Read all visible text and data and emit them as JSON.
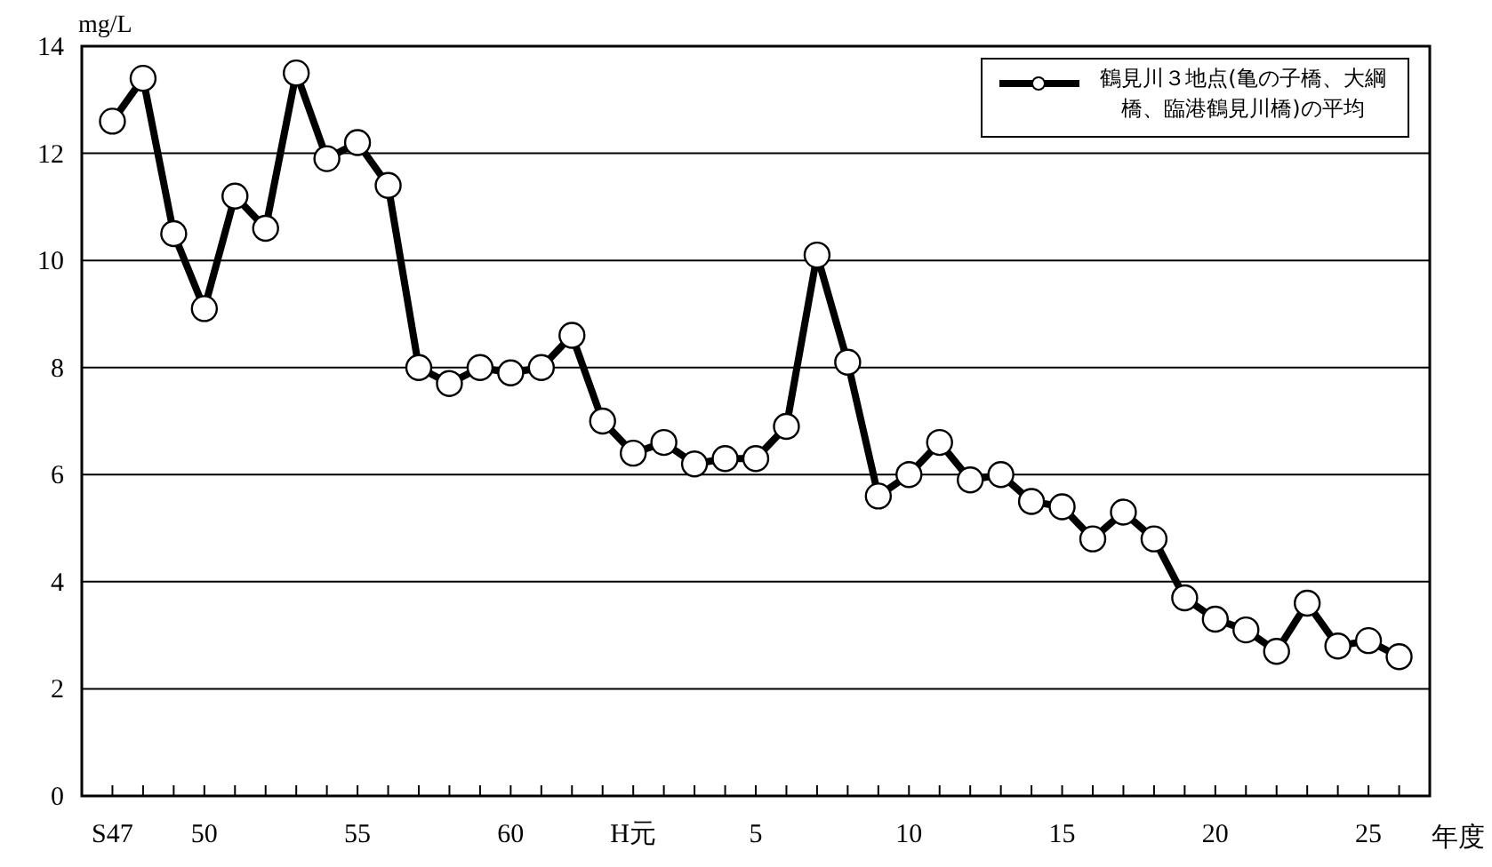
{
  "chart_data": {
    "type": "line",
    "xlabel": "年度",
    "ylabel": "mg/L",
    "categories": [
      "S47",
      null,
      null,
      "50",
      null,
      null,
      null,
      null,
      "55",
      null,
      null,
      null,
      null,
      "60",
      null,
      null,
      null,
      "H元",
      null,
      null,
      null,
      "5",
      null,
      null,
      null,
      null,
      "10",
      null,
      null,
      null,
      null,
      "15",
      null,
      null,
      null,
      null,
      "20",
      null,
      null,
      null,
      null,
      "25",
      null
    ],
    "series": [
      {
        "name": "鶴見川３地点(亀の子橋、大綱橋、臨港鶴見川橋)の平均",
        "color": "#000000",
        "values": [
          12.6,
          13.4,
          10.5,
          9.1,
          11.2,
          10.6,
          13.5,
          11.9,
          12.2,
          11.4,
          8.0,
          7.7,
          8.0,
          7.9,
          8.0,
          8.6,
          7.0,
          6.4,
          6.6,
          6.2,
          6.3,
          6.3,
          6.9,
          10.1,
          8.1,
          5.6,
          6.0,
          6.6,
          5.9,
          6.0,
          5.5,
          5.4,
          4.8,
          5.3,
          4.8,
          3.7,
          3.3,
          3.1,
          2.7,
          3.6,
          2.8,
          2.9,
          2.6
        ]
      }
    ],
    "ylim": [
      0,
      14
    ],
    "yticks": [
      0,
      2,
      4,
      6,
      8,
      10,
      12,
      14
    ],
    "grid": "y",
    "legend": "top right",
    "marker": "circle",
    "line_style": "solid"
  }
}
